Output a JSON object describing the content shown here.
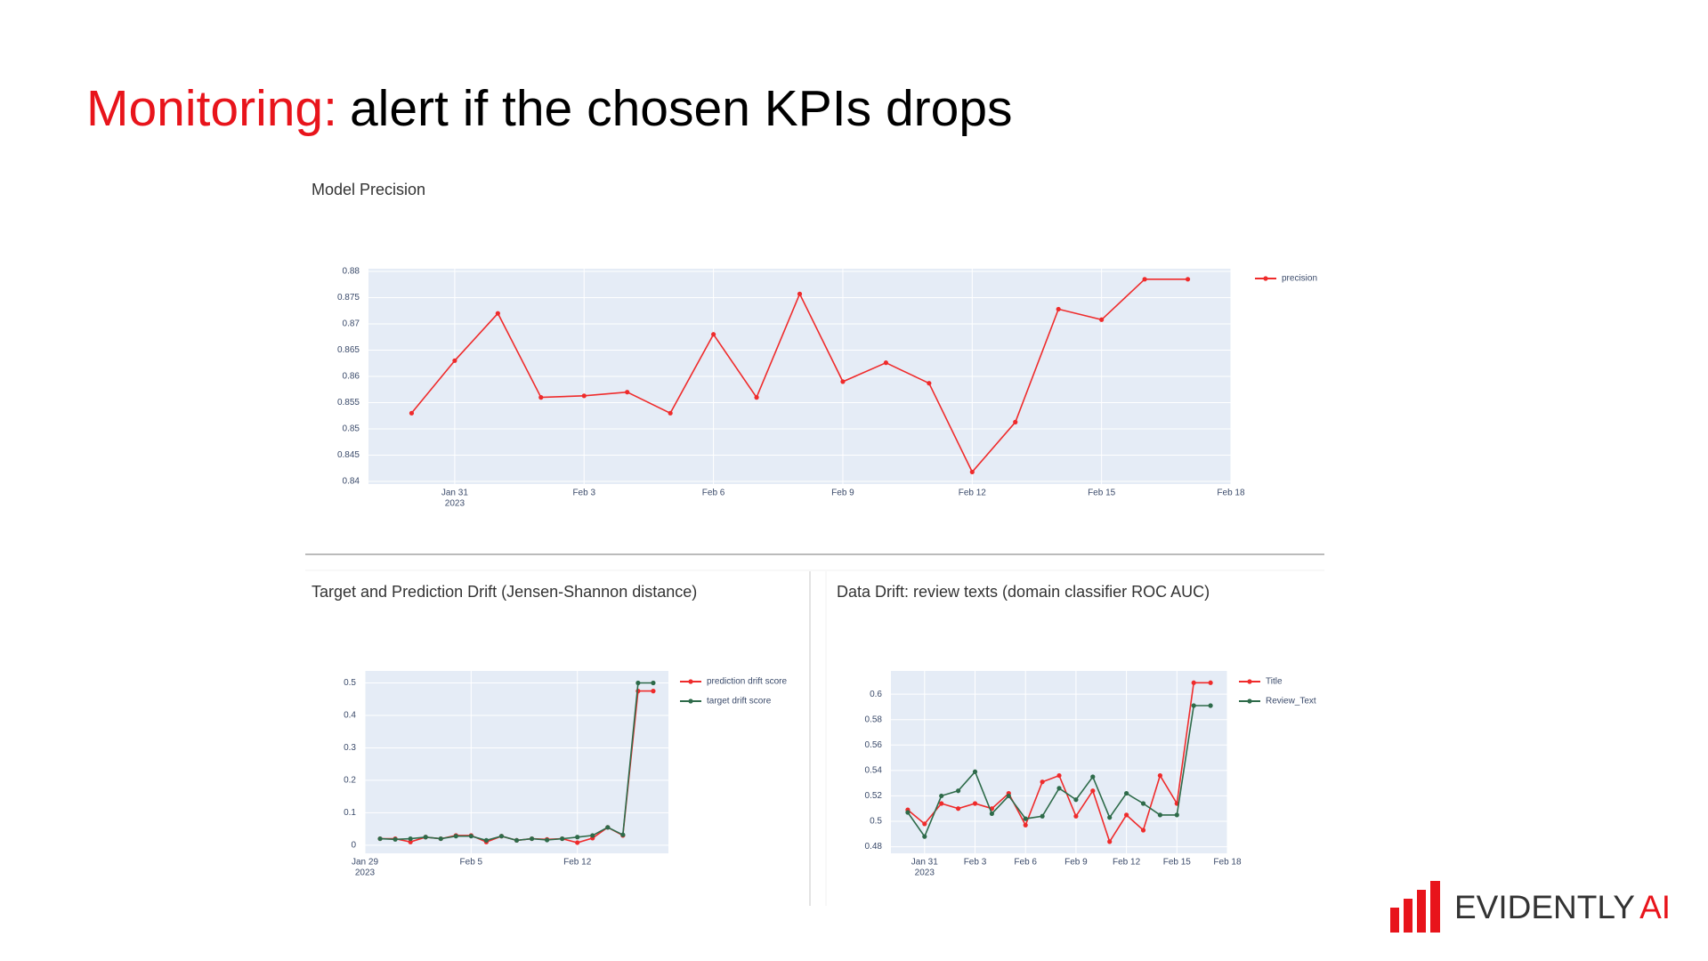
{
  "slide": {
    "title_highlight": "Monitoring:",
    "title_rest": "alert if the chosen KPIs drops",
    "logo_text": "EVIDENTLY",
    "logo_accent": "AI"
  },
  "chart_data": [
    {
      "type": "line",
      "title": "Model Precision",
      "x": [
        "2023-01-30",
        "2023-01-31",
        "2023-02-01",
        "2023-02-02",
        "2023-02-03",
        "2023-02-04",
        "2023-02-05",
        "2023-02-06",
        "2023-02-07",
        "2023-02-08",
        "2023-02-09",
        "2023-02-10",
        "2023-02-11",
        "2023-02-12",
        "2023-02-13",
        "2023-02-14",
        "2023-02-15",
        "2023-02-16",
        "2023-02-17"
      ],
      "series": [
        {
          "name": "precision",
          "color": "#ef2b2b",
          "values": [
            0.853,
            0.863,
            0.872,
            0.856,
            0.8563,
            0.857,
            0.853,
            0.868,
            0.856,
            0.8757,
            0.859,
            0.8626,
            0.8587,
            0.8418,
            0.8513,
            0.8728,
            0.8708,
            0.8785,
            0.8785
          ]
        }
      ],
      "xlim": [
        "2023-01-29",
        "2023-02-18"
      ],
      "xticks": [
        {
          "value": "2023-01-31",
          "label": "Jan 31"
        },
        {
          "value": "2023-02-03",
          "label": "Feb 3"
        },
        {
          "value": "2023-02-06",
          "label": "Feb 6"
        },
        {
          "value": "2023-02-09",
          "label": "Feb 9"
        },
        {
          "value": "2023-02-12",
          "label": "Feb 12"
        },
        {
          "value": "2023-02-15",
          "label": "Feb 15"
        },
        {
          "value": "2023-02-18",
          "label": "Feb 18"
        }
      ],
      "xtick_sub": "2023",
      "ylim": [
        0.8395,
        0.8805
      ],
      "yticks": [
        0.84,
        0.845,
        0.85,
        0.855,
        0.86,
        0.865,
        0.87,
        0.875,
        0.88
      ],
      "grid": true,
      "legend": "outside-right"
    },
    {
      "type": "line",
      "title": "Target and Prediction Drift (Jensen-Shannon distance)",
      "x": [
        "2023-01-30",
        "2023-01-31",
        "2023-02-01",
        "2023-02-02",
        "2023-02-03",
        "2023-02-04",
        "2023-02-05",
        "2023-02-06",
        "2023-02-07",
        "2023-02-08",
        "2023-02-09",
        "2023-02-10",
        "2023-02-11",
        "2023-02-12",
        "2023-02-13",
        "2023-02-14",
        "2023-02-15",
        "2023-02-16",
        "2023-02-17"
      ],
      "series": [
        {
          "name": "prediction drift score",
          "color": "#ef2b2b",
          "values": [
            0.02,
            0.02,
            0.01,
            0.025,
            0.02,
            0.03,
            0.03,
            0.01,
            0.028,
            0.015,
            0.02,
            0.018,
            0.02,
            0.008,
            0.022,
            0.055,
            0.03,
            0.475,
            0.475
          ]
        },
        {
          "name": "target drift score",
          "color": "#2e6b4a",
          "values": [
            0.02,
            0.018,
            0.02,
            0.025,
            0.02,
            0.028,
            0.028,
            0.015,
            0.028,
            0.015,
            0.02,
            0.016,
            0.02,
            0.025,
            0.03,
            0.055,
            0.032,
            0.5,
            0.5
          ]
        }
      ],
      "xlim": [
        "2023-01-29",
        "2023-02-18"
      ],
      "xticks": [
        {
          "value": "2023-01-29",
          "label": "Jan 29"
        },
        {
          "value": "2023-02-05",
          "label": "Feb 5"
        },
        {
          "value": "2023-02-12",
          "label": "Feb 12"
        }
      ],
      "xtick_sub": "2023",
      "ylim": [
        -0.025,
        0.537
      ],
      "yticks": [
        0,
        0.1,
        0.2,
        0.3,
        0.4,
        0.5
      ],
      "grid": true,
      "legend": "outside-right"
    },
    {
      "type": "line",
      "title": "Data Drift: review texts (domain classifier ROC AUC)",
      "x": [
        "2023-01-30",
        "2023-01-31",
        "2023-02-01",
        "2023-02-02",
        "2023-02-03",
        "2023-02-04",
        "2023-02-05",
        "2023-02-06",
        "2023-02-07",
        "2023-02-08",
        "2023-02-09",
        "2023-02-10",
        "2023-02-11",
        "2023-02-12",
        "2023-02-13",
        "2023-02-14",
        "2023-02-15",
        "2023-02-16",
        "2023-02-17"
      ],
      "series": [
        {
          "name": "Title",
          "color": "#ef2b2b",
          "values": [
            0.509,
            0.498,
            0.514,
            0.51,
            0.514,
            0.51,
            0.522,
            0.497,
            0.531,
            0.536,
            0.504,
            0.524,
            0.484,
            0.505,
            0.493,
            0.536,
            0.514,
            0.609,
            0.609
          ]
        },
        {
          "name": "Review_Text",
          "color": "#2e6b4a",
          "values": [
            0.507,
            0.488,
            0.52,
            0.524,
            0.539,
            0.506,
            0.52,
            0.502,
            0.504,
            0.526,
            0.517,
            0.535,
            0.503,
            0.522,
            0.514,
            0.505,
            0.505,
            0.591,
            0.591
          ]
        }
      ],
      "xlim": [
        "2023-01-29",
        "2023-02-18"
      ],
      "xticks": [
        {
          "value": "2023-01-31",
          "label": "Jan 31"
        },
        {
          "value": "2023-02-03",
          "label": "Feb 3"
        },
        {
          "value": "2023-02-06",
          "label": "Feb 6"
        },
        {
          "value": "2023-02-09",
          "label": "Feb 9"
        },
        {
          "value": "2023-02-12",
          "label": "Feb 12"
        },
        {
          "value": "2023-02-15",
          "label": "Feb 15"
        },
        {
          "value": "2023-02-18",
          "label": "Feb 18"
        }
      ],
      "xtick_sub": "2023",
      "ylim": [
        0.4748,
        0.6183
      ],
      "yticks": [
        0.48,
        0.5,
        0.52,
        0.54,
        0.56,
        0.58,
        0.6
      ],
      "grid": true,
      "legend": "outside-right"
    }
  ]
}
